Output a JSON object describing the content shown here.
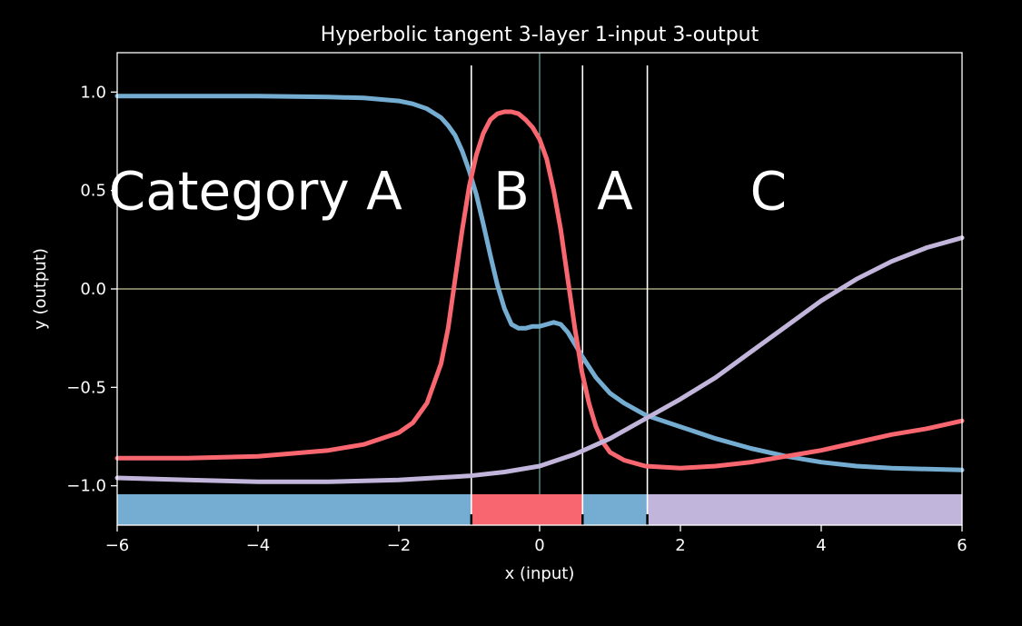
{
  "chart_data": {
    "type": "line",
    "title": "Hyperbolic tangent 3-layer 1-input 3-output",
    "xlabel": "x (input)",
    "ylabel": "y (output)",
    "xlim": [
      -6,
      6
    ],
    "ylim": [
      -1.2,
      1.2
    ],
    "xticks": [
      -6,
      -4,
      -2,
      0,
      2,
      4,
      6
    ],
    "xtick_labels": [
      "−6",
      "−4",
      "−2",
      "0",
      "2",
      "4",
      "6"
    ],
    "yticks": [
      1.0,
      0.5,
      0.0,
      -0.5,
      -1.0
    ],
    "ytick_labels": [
      "1.0",
      "0.5",
      "0.0",
      "−0.5",
      "−1.0"
    ],
    "reference_lines": {
      "y": 0,
      "x": 0
    },
    "boundaries": [
      -0.97,
      0.61,
      1.53
    ],
    "series": [
      {
        "color": "#74add1",
        "x": [
          -6,
          -5,
          -4,
          -3,
          -2.5,
          -2,
          -1.8,
          -1.6,
          -1.4,
          -1.3,
          -1.2,
          -1.1,
          -1.0,
          -0.9,
          -0.8,
          -0.7,
          -0.6,
          -0.5,
          -0.4,
          -0.3,
          -0.2,
          -0.1,
          0,
          0.1,
          0.2,
          0.3,
          0.4,
          0.5,
          0.6,
          0.8,
          1.0,
          1.2,
          1.5,
          2,
          2.5,
          3,
          3.5,
          4,
          4.5,
          5,
          5.5,
          6
        ],
        "y": [
          0.98,
          0.98,
          0.98,
          0.975,
          0.97,
          0.955,
          0.94,
          0.915,
          0.87,
          0.83,
          0.78,
          0.7,
          0.6,
          0.48,
          0.33,
          0.17,
          0.02,
          -0.1,
          -0.18,
          -0.2,
          -0.2,
          -0.19,
          -0.19,
          -0.18,
          -0.17,
          -0.18,
          -0.22,
          -0.28,
          -0.34,
          -0.45,
          -0.53,
          -0.58,
          -0.64,
          -0.7,
          -0.76,
          -0.81,
          -0.85,
          -0.88,
          -0.9,
          -0.91,
          -0.915,
          -0.92
        ]
      },
      {
        "color": "#f8676f",
        "x": [
          -6,
          -5,
          -4,
          -3,
          -2.5,
          -2,
          -1.8,
          -1.6,
          -1.4,
          -1.3,
          -1.2,
          -1.1,
          -1.0,
          -0.9,
          -0.8,
          -0.7,
          -0.6,
          -0.5,
          -0.4,
          -0.3,
          -0.2,
          -0.1,
          0,
          0.1,
          0.2,
          0.3,
          0.4,
          0.5,
          0.6,
          0.7,
          0.8,
          0.9,
          1.0,
          1.2,
          1.5,
          2,
          2.5,
          3,
          3.5,
          4,
          4.5,
          5,
          5.5,
          6
        ],
        "y": [
          -0.86,
          -0.86,
          -0.85,
          -0.82,
          -0.79,
          -0.73,
          -0.68,
          -0.58,
          -0.38,
          -0.2,
          0.05,
          0.3,
          0.52,
          0.68,
          0.79,
          0.86,
          0.89,
          0.9,
          0.9,
          0.89,
          0.86,
          0.82,
          0.76,
          0.66,
          0.5,
          0.3,
          0.05,
          -0.2,
          -0.42,
          -0.58,
          -0.7,
          -0.78,
          -0.83,
          -0.87,
          -0.9,
          -0.91,
          -0.9,
          -0.88,
          -0.85,
          -0.82,
          -0.78,
          -0.74,
          -0.71,
          -0.67
        ]
      },
      {
        "color": "#c2b5db",
        "x": [
          -6,
          -5,
          -4,
          -3,
          -2,
          -1.5,
          -1,
          -0.5,
          0,
          0.5,
          1,
          1.5,
          2,
          2.5,
          3,
          3.5,
          4,
          4.5,
          5,
          5.5,
          6
        ],
        "y": [
          -0.96,
          -0.97,
          -0.98,
          -0.98,
          -0.97,
          -0.96,
          -0.95,
          -0.93,
          -0.9,
          -0.84,
          -0.76,
          -0.66,
          -0.56,
          -0.45,
          -0.32,
          -0.19,
          -0.06,
          0.05,
          0.14,
          0.21,
          0.26
        ]
      }
    ],
    "regions": [
      {
        "from": -6,
        "to": -0.97,
        "color": "#74add1",
        "label": "Category A"
      },
      {
        "from": -0.97,
        "to": 0.61,
        "color": "#f8676f",
        "label": "B"
      },
      {
        "from": 0.61,
        "to": 1.53,
        "color": "#74add1",
        "label": "A"
      },
      {
        "from": 1.53,
        "to": 6,
        "color": "#c2b5db",
        "label": "C"
      }
    ],
    "category_label_y": 0.5
  }
}
